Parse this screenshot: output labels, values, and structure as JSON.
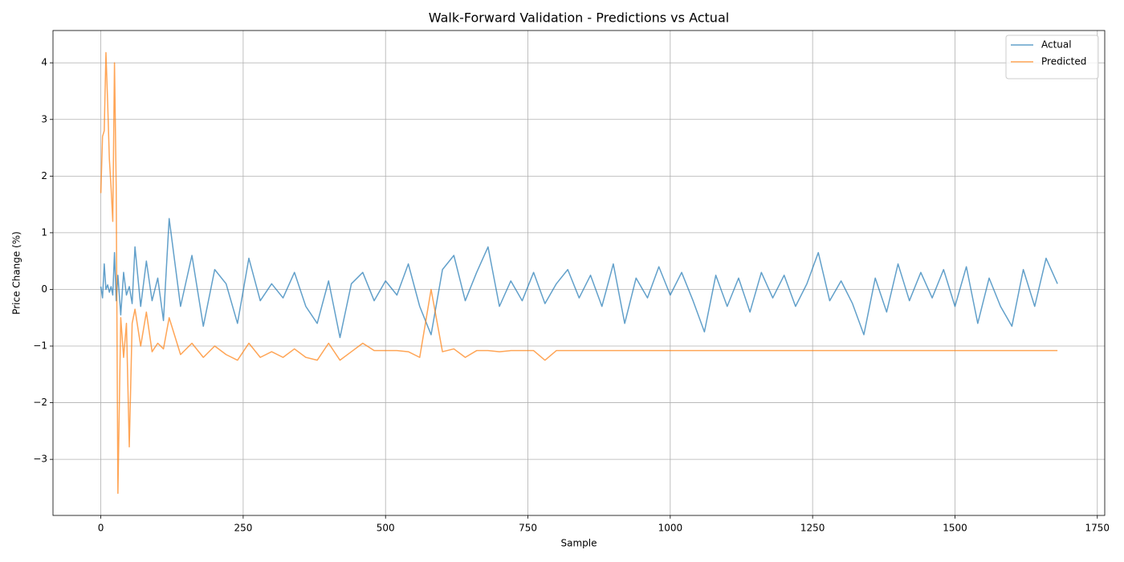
{
  "chart_data": {
    "type": "line",
    "title": "Walk-Forward Validation - Predictions vs Actual",
    "x_label": "Sample",
    "y_label": "Price Change (%)",
    "x": [
      0,
      3,
      6,
      9,
      12,
      15,
      18,
      21,
      24,
      27,
      30,
      35,
      40,
      45,
      50,
      55,
      60,
      70,
      80,
      90,
      100,
      110,
      120,
      140,
      160,
      180,
      200,
      220,
      240,
      260,
      280,
      300,
      320,
      340,
      360,
      380,
      400,
      420,
      440,
      460,
      480,
      500,
      520,
      540,
      560,
      580,
      600,
      620,
      640,
      660,
      680,
      700,
      720,
      740,
      760,
      780,
      800,
      820,
      840,
      860,
      880,
      900,
      920,
      940,
      960,
      980,
      1000,
      1020,
      1040,
      1060,
      1080,
      1100,
      1120,
      1140,
      1160,
      1180,
      1200,
      1220,
      1240,
      1260,
      1280,
      1300,
      1320,
      1340,
      1360,
      1380,
      1400,
      1420,
      1440,
      1460,
      1480,
      1500,
      1520,
      1540,
      1560,
      1580,
      1600,
      1620,
      1640,
      1660,
      1680
    ],
    "series": [
      {
        "name": "Actual",
        "color": "#1f77b4",
        "values": [
          0.05,
          -0.15,
          0.45,
          0.0,
          0.08,
          -0.05,
          0.05,
          -0.1,
          0.65,
          -0.2,
          0.25,
          -0.45,
          0.3,
          -0.1,
          0.05,
          -0.25,
          0.75,
          -0.3,
          0.5,
          -0.2,
          0.2,
          -0.55,
          1.25,
          -0.3,
          0.6,
          -0.65,
          0.35,
          0.1,
          -0.6,
          0.55,
          -0.2,
          0.1,
          -0.15,
          0.3,
          -0.3,
          -0.6,
          0.15,
          -0.85,
          0.1,
          0.3,
          -0.2,
          0.15,
          -0.1,
          0.45,
          -0.3,
          -0.8,
          0.35,
          0.6,
          -0.2,
          0.3,
          0.75,
          -0.3,
          0.15,
          -0.2,
          0.3,
          -0.25,
          0.1,
          0.35,
          -0.15,
          0.25,
          -0.3,
          0.45,
          -0.6,
          0.2,
          -0.15,
          0.4,
          -0.1,
          0.3,
          -0.2,
          -0.75,
          0.25,
          -0.3,
          0.2,
          -0.4,
          0.3,
          -0.15,
          0.25,
          -0.3,
          0.1,
          0.65,
          -0.2,
          0.15,
          -0.25,
          -0.8,
          0.2,
          -0.4,
          0.45,
          -0.2,
          0.3,
          -0.15,
          0.35,
          -0.3,
          0.4,
          -0.6,
          0.2,
          -0.3,
          -0.65,
          0.35,
          -0.3,
          0.55,
          0.1
        ]
      },
      {
        "name": "Predicted",
        "color": "#ff7f0e",
        "values": [
          1.7,
          2.7,
          2.8,
          4.18,
          3.3,
          2.3,
          1.8,
          1.2,
          4.0,
          1.8,
          -3.6,
          -0.5,
          -1.2,
          -0.6,
          -2.78,
          -0.6,
          -0.35,
          -1.0,
          -0.4,
          -1.1,
          -0.95,
          -1.05,
          -0.5,
          -1.15,
          -0.95,
          -1.2,
          -1.0,
          -1.15,
          -1.25,
          -0.95,
          -1.2,
          -1.1,
          -1.2,
          -1.05,
          -1.2,
          -1.25,
          -0.95,
          -1.25,
          -1.1,
          -0.95,
          -1.08,
          -1.08,
          -1.08,
          -1.1,
          -1.2,
          0.0,
          -1.1,
          -1.05,
          -1.2,
          -1.08,
          -1.08,
          -1.1,
          -1.08,
          -1.08,
          -1.08,
          -1.25,
          -1.08,
          -1.08,
          -1.08,
          -1.08,
          -1.08,
          -1.08,
          -1.08,
          -1.08,
          -1.08,
          -1.08,
          -1.08,
          -1.08,
          -1.08,
          -1.08,
          -1.08,
          -1.08,
          -1.08,
          -1.08,
          -1.08,
          -1.08,
          -1.08,
          -1.08,
          -1.08,
          -1.08,
          -1.08,
          -1.08,
          -1.08,
          -1.08,
          -1.08,
          -1.08,
          -1.08,
          -1.08,
          -1.08,
          -1.08,
          -1.08,
          -1.08,
          -1.08,
          -1.08,
          -1.08,
          -1.08,
          -1.08,
          -1.08,
          -1.08,
          -1.08,
          -1.08
        ]
      }
    ],
    "xlim": [
      -84,
      1763
    ],
    "ylim": [
      -3.99,
      4.57
    ],
    "xticks": [
      0,
      250,
      500,
      750,
      1000,
      1250,
      1500,
      1750
    ],
    "yticks": [
      {
        "value": -3,
        "label": "−3"
      },
      {
        "value": -2,
        "label": "−2"
      },
      {
        "value": -1,
        "label": "−1"
      },
      0,
      1,
      2,
      3,
      4
    ],
    "grid": true,
    "legend": "upper-right",
    "line_opacity": 0.7
  }
}
